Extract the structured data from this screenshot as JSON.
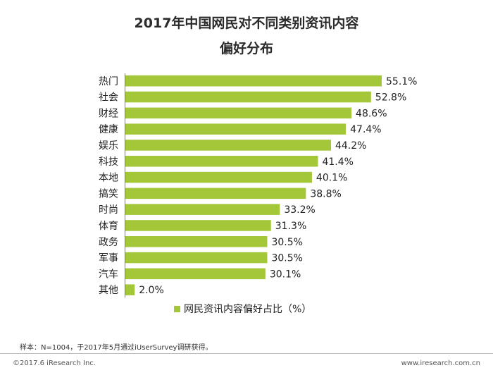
{
  "title_line1": "2017年中国网民对不同类别资讯内容",
  "title_line2": "偏好分布",
  "chart_data": {
    "type": "bar",
    "orientation": "horizontal",
    "categories": [
      "热门",
      "社会",
      "财经",
      "健康",
      "娱乐",
      "科技",
      "本地",
      "搞笑",
      "时尚",
      "体育",
      "政务",
      "军事",
      "汽车",
      "其他"
    ],
    "series": [
      {
        "name": "网民资讯内容偏好占比（%）",
        "values": [
          55.1,
          52.8,
          48.6,
          47.4,
          44.2,
          41.4,
          40.1,
          38.8,
          33.2,
          31.3,
          30.5,
          30.5,
          30.1,
          2.0
        ]
      }
    ],
    "value_suffix": "%",
    "xlim": [
      0,
      60
    ],
    "legend_position": "bottom",
    "grid": false,
    "bar_color": "#a4c639"
  },
  "footer": {
    "source": "样本：N=1004，于2017年5月通过iUserSurvey调研获得。",
    "copyright": "©2017.6 iResearch Inc.",
    "website": "www.iresearch.com.cn"
  }
}
